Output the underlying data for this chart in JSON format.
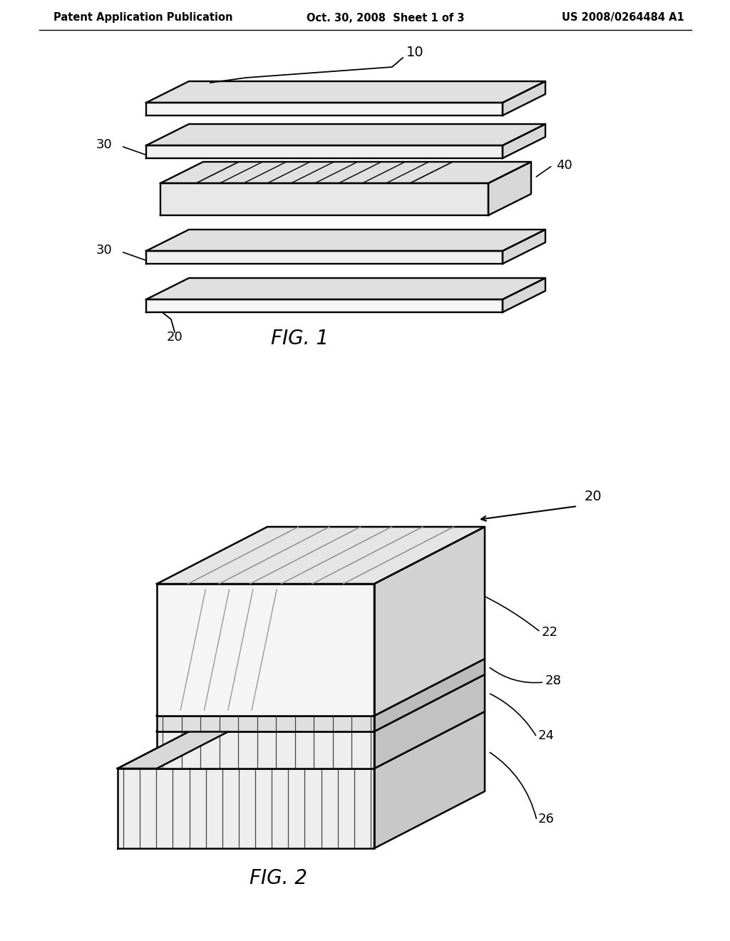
{
  "bg_color": "#ffffff",
  "line_color": "#000000",
  "header_left": "Patent Application Publication",
  "header_mid": "Oct. 30, 2008  Sheet 1 of 3",
  "header_right": "US 2008/0264484 A1",
  "fig1_label": "FIG. 1",
  "fig2_label": "FIG. 2",
  "label_10": "10",
  "label_20": "20",
  "label_30a": "30",
  "label_30b": "30",
  "label_40": "40",
  "label_20b": "20",
  "label_22": "22",
  "label_24": "24",
  "label_26": "26",
  "label_28": "28"
}
